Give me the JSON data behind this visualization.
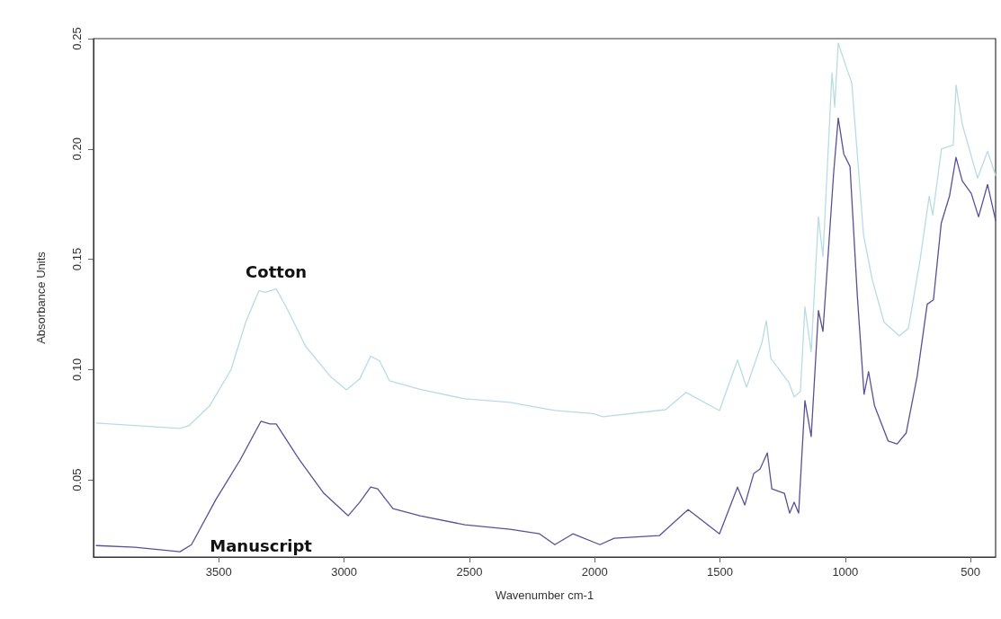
{
  "chart_data": {
    "type": "line",
    "xlabel": "Wavenumber cm-1",
    "ylabel": "Absorbance Units",
    "xlim": [
      4000,
      400
    ],
    "ylim": [
      0.015,
      0.25
    ],
    "xticks": [
      3500,
      3000,
      2500,
      2000,
      1500,
      1000,
      500
    ],
    "yticks": [
      0.05,
      {
        "value": 0.1,
        "label": "0.10"
      },
      0.15,
      {
        "value": 0.2,
        "label": "0.20"
      },
      0.25
    ],
    "grid": false,
    "marker": "none",
    "line_style": "solid",
    "series": [
      {
        "name": "Cotton",
        "color": "#b7dde0",
        "x": [
          3989,
          3655,
          3620,
          3537,
          3451,
          3393,
          3340,
          3314,
          3271,
          3225,
          3153,
          3056,
          2991,
          2938,
          2894,
          2859,
          2819,
          2697,
          2518,
          2338,
          2220,
          2159,
          2004,
          1968,
          1717,
          1635,
          1502,
          1430,
          1394,
          1333,
          1315,
          1297,
          1225,
          1204,
          1179,
          1161,
          1136,
          1107,
          1089,
          1053,
          1042,
          1028,
          992,
          974,
          927,
          892,
          845,
          784,
          748,
          701,
          665,
          651,
          616,
          569,
          558,
          533,
          472,
          432,
          400
        ],
        "values": [
          0.0757,
          0.0733,
          0.0745,
          0.0835,
          0.1,
          0.1214,
          0.1357,
          0.135,
          0.1365,
          0.127,
          0.1104,
          0.097,
          0.0908,
          0.0957,
          0.106,
          0.104,
          0.0949,
          0.091,
          0.0867,
          0.0851,
          0.0827,
          0.0814,
          0.08,
          0.0786,
          0.0818,
          0.0896,
          0.0814,
          0.1043,
          0.092,
          0.112,
          0.1222,
          0.1051,
          0.0941,
          0.0876,
          0.09,
          0.1284,
          0.108,
          0.1692,
          0.1512,
          0.2345,
          0.219,
          0.248,
          0.2357,
          0.23,
          0.161,
          0.1406,
          0.1214,
          0.1153,
          0.1186,
          0.15,
          0.1786,
          0.17,
          0.2,
          0.2018,
          0.229,
          0.2112,
          0.1867,
          0.199,
          0.188
        ]
      },
      {
        "name": "Manuscript",
        "color": "#5b4f96",
        "x": [
          3989,
          3835,
          3655,
          3609,
          3512,
          3415,
          3332,
          3296,
          3271,
          3178,
          3081,
          2984,
          2938,
          2894,
          2866,
          2805,
          2697,
          2518,
          2338,
          2220,
          2159,
          2087,
          1979,
          1922,
          1742,
          1627,
          1502,
          1430,
          1401,
          1365,
          1340,
          1311,
          1293,
          1243,
          1222,
          1204,
          1186,
          1161,
          1136,
          1107,
          1089,
          1046,
          1028,
          1006,
          981,
          952,
          925,
          907,
          883,
          829,
          793,
          757,
          713,
          673,
          648,
          617,
          584,
          558,
          533,
          497,
          468,
          432,
          400
        ],
        "values": [
          0.0202,
          0.0194,
          0.0174,
          0.0206,
          0.041,
          0.059,
          0.0765,
          0.0753,
          0.0753,
          0.059,
          0.0439,
          0.0337,
          0.0398,
          0.0467,
          0.0459,
          0.0369,
          0.0337,
          0.0296,
          0.0276,
          0.0255,
          0.0206,
          0.0255,
          0.0206,
          0.0235,
          0.0247,
          0.0365,
          0.0255,
          0.0467,
          0.0386,
          0.0529,
          0.0549,
          0.0622,
          0.0459,
          0.0439,
          0.0349,
          0.0398,
          0.0349,
          0.0859,
          0.0696,
          0.1267,
          0.1173,
          0.1896,
          0.214,
          0.1978,
          0.192,
          0.1337,
          0.0888,
          0.099,
          0.0835,
          0.0676,
          0.0663,
          0.0712,
          0.0969,
          0.1296,
          0.1316,
          0.1663,
          0.1786,
          0.1962,
          0.1855,
          0.1798,
          0.1692,
          0.1839,
          0.1676
        ]
      }
    ]
  }
}
